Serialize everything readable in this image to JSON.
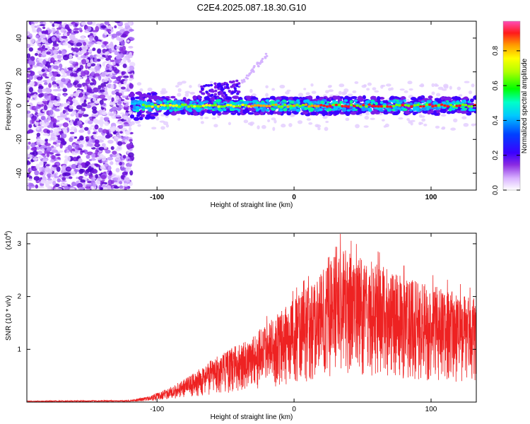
{
  "figure": {
    "title": "C2E4.2025.087.18.30.G10"
  },
  "chart_data": [
    {
      "type": "heatmap",
      "xlabel": "Height of straight line (km)",
      "ylabel": "Frequency (Hz)",
      "xlim": [
        -195,
        133
      ],
      "ylim": [
        -50,
        50
      ],
      "xticks": [
        -100,
        0,
        100
      ],
      "yticks": [
        -40,
        -20,
        0,
        20,
        40
      ],
      "colorbar": {
        "label": "Normalized spectral amplitude",
        "range": [
          0,
          0.97
        ],
        "ticks": [
          "0.0",
          "0.2",
          "0.4",
          "0.6",
          "0.8"
        ],
        "colormap": [
          "#ffffff",
          "#e9d4ff",
          "#8a2be2",
          "#0000ff",
          "#00bfff",
          "#00ff00",
          "#ffff00",
          "#ff8000",
          "#ff0000",
          "#ff3399"
        ]
      },
      "bands": [
        {
          "name": "noise",
          "x_range": [
            -195,
            -118
          ],
          "y_range": [
            -50,
            50
          ]
        },
        {
          "name": "signal",
          "x_range": [
            -120,
            133
          ],
          "center_hz": 0,
          "halfwidth_hz": 5
        },
        {
          "name": "feature",
          "x_range": [
            -70,
            -40
          ],
          "center_hz": 8
        }
      ]
    },
    {
      "type": "line",
      "xlabel": "Height of straight line (km)",
      "ylabel": "SNR (10 * v/v)",
      "y_exponent": "(x10",
      "y_exponent_power": "4",
      "xlim": [
        -195,
        133
      ],
      "ylim": [
        0,
        3.2
      ],
      "xticks": [
        -100,
        0,
        100
      ],
      "yticks": [
        1,
        2,
        3
      ],
      "color": "#ee2222",
      "envelope": {
        "x": [
          -195,
          -120,
          -105,
          -90,
          -75,
          -60,
          -45,
          -30,
          -15,
          0,
          15,
          30,
          45,
          60,
          75,
          90,
          105,
          120,
          133
        ],
        "y": [
          0.02,
          0.03,
          0.1,
          0.25,
          0.45,
          0.7,
          0.9,
          1.1,
          1.4,
          1.7,
          2.0,
          2.6,
          2.4,
          2.3,
          2.1,
          2.0,
          1.9,
          1.8,
          1.7
        ]
      }
    }
  ]
}
